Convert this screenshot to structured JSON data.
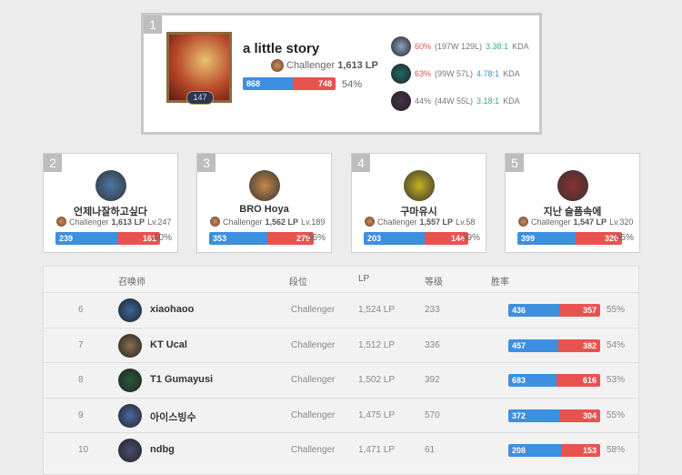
{
  "colors": {
    "win": "#3d8fe0",
    "loss": "#e8534f"
  },
  "top": {
    "rank": "1",
    "name": "a little story",
    "tier": "Challenger",
    "lp": "1,613 LP",
    "level": "147",
    "wins": 868,
    "losses": 748,
    "winrate": "54%",
    "champions": [
      {
        "winrate": "60%",
        "record": "(197W 129L)",
        "kda": "3.38:1",
        "kda_color": "teal",
        "suffix": "KDA",
        "wr_color": "red",
        "icon": "#8fa0c0"
      },
      {
        "winrate": "63%",
        "record": "(99W 57L)",
        "kda": "4.78:1",
        "kda_color": "blue",
        "suffix": "KDA",
        "wr_color": "red",
        "icon": "#1f6a6a"
      },
      {
        "winrate": "44%",
        "record": "(44W 55L)",
        "kda": "3.18:1",
        "kda_color": "teal",
        "suffix": "KDA",
        "wr_color": "",
        "icon": "#4a3050"
      }
    ]
  },
  "cards": [
    {
      "rank": "2",
      "name": "언제나잘하고싶다",
      "tier": "Challenger",
      "lp": "1,613 LP",
      "level": "Lv.247",
      "wins": 239,
      "losses": 161,
      "winrate": "60%",
      "icon": "#4a78a8"
    },
    {
      "rank": "3",
      "name": "BRO Hoya",
      "tier": "Challenger",
      "lp": "1,562 LP",
      "level": "Lv.189",
      "wins": 353,
      "losses": 279,
      "winrate": "56%",
      "icon": "#c8884a"
    },
    {
      "rank": "4",
      "name": "구마유시",
      "tier": "Challenger",
      "lp": "1,557 LP",
      "level": "Lv.58",
      "wins": 203,
      "losses": 144,
      "winrate": "59%",
      "icon": "#c8b020"
    },
    {
      "rank": "5",
      "name": "지난 슬픔속에",
      "tier": "Challenger",
      "lp": "1,547 LP",
      "level": "Lv.320",
      "wins": 399,
      "losses": 320,
      "winrate": "55%",
      "icon": "#903030"
    }
  ],
  "table": {
    "headers": [
      "召唤师",
      "段位",
      "LP",
      "等级",
      "胜率"
    ],
    "rows": [
      {
        "rank": "6",
        "name": "xiaohaoo",
        "tier": "Challenger",
        "lp": "1,524 LP",
        "level": "233",
        "wins": 436,
        "losses": 357,
        "winrate": "55%",
        "icon": "#3a6a9a"
      },
      {
        "rank": "7",
        "name": "KT Ucal",
        "tier": "Challenger",
        "lp": "1,512 LP",
        "level": "336",
        "wins": 457,
        "losses": 382,
        "winrate": "54%",
        "icon": "#8a7050"
      },
      {
        "rank": "8",
        "name": "T1 Gumayusi",
        "tier": "Challenger",
        "lp": "1,502 LP",
        "level": "392",
        "wins": 683,
        "losses": 616,
        "winrate": "53%",
        "icon": "#2a5a3a"
      },
      {
        "rank": "9",
        "name": "아이스빙수",
        "tier": "Challenger",
        "lp": "1,475 LP",
        "level": "570",
        "wins": 372,
        "losses": 304,
        "winrate": "55%",
        "icon": "#4a6aa8"
      },
      {
        "rank": "10",
        "name": "ndbg",
        "tier": "Challenger",
        "lp": "1,471 LP",
        "level": "61",
        "wins": 208,
        "losses": 153,
        "winrate": "58%",
        "icon": "#4a5070"
      }
    ]
  }
}
